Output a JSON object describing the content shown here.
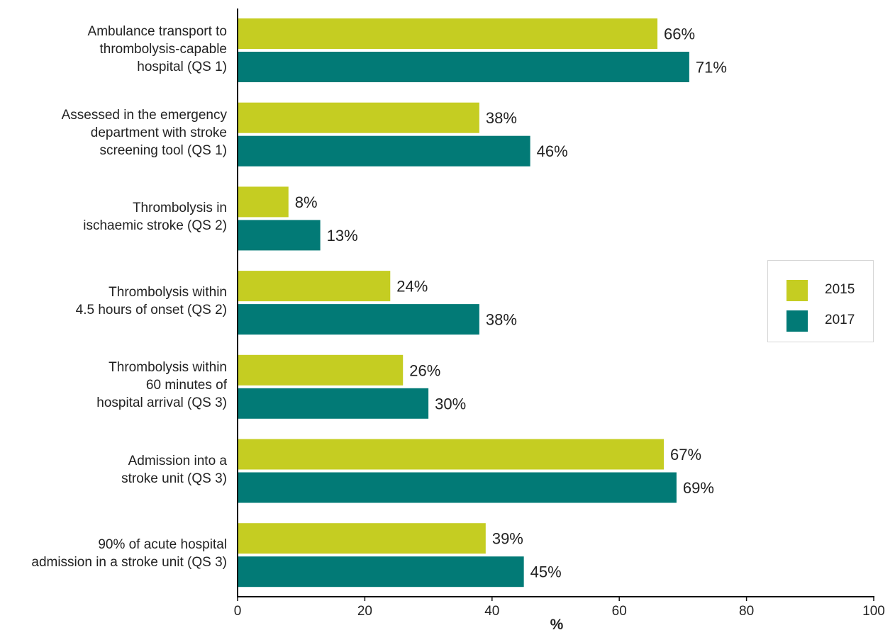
{
  "chart_data": {
    "type": "bar",
    "orientation": "horizontal",
    "categories": [
      [
        "Ambulance transport to",
        "thrombolysis-capable",
        "hospital (QS 1)"
      ],
      [
        "Assessed in the emergency",
        "department with stroke",
        "screening tool  (QS 1)"
      ],
      [
        "Thrombolysis in",
        "ischaemic stroke (QS 2)"
      ],
      [
        "Thrombolysis within",
        "4.5 hours of onset  (QS 2)"
      ],
      [
        "Thrombolysis within",
        "60 minutes of",
        "hospital arrival (QS 3)"
      ],
      [
        "Admission into a",
        "stroke unit (QS 3)"
      ],
      [
        "90% of acute hospital",
        "admission in a stroke unit (QS 3)"
      ]
    ],
    "series": [
      {
        "name": "2015",
        "color": "#c5cd22",
        "values": [
          66,
          38,
          8,
          24,
          26,
          67,
          39
        ],
        "labels": [
          "66%",
          "38%",
          "8%",
          "24%",
          "26%",
          "67%",
          "39%"
        ]
      },
      {
        "name": "2017",
        "color": "#027a76",
        "values": [
          71,
          46,
          13,
          38,
          30,
          69,
          45
        ],
        "labels": [
          "71%",
          "46%",
          "13%",
          "38%",
          "30%",
          "69%",
          "45%"
        ]
      }
    ],
    "xlabel": "%",
    "xlim": [
      0,
      100
    ],
    "xticks": [
      0,
      20,
      40,
      60,
      80,
      100
    ],
    "xtick_labels": [
      "0",
      "20",
      "40",
      "60",
      "80",
      "100"
    ],
    "grid": false,
    "legend_position": "right"
  }
}
